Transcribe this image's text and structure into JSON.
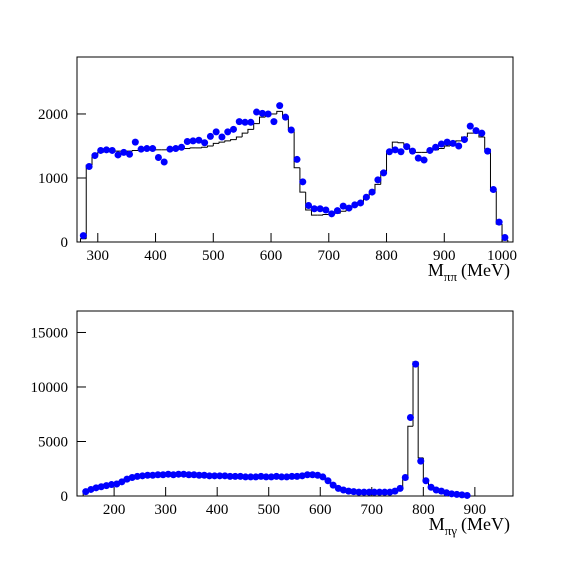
{
  "chart_data": [
    {
      "type": "scatter",
      "xlabel": {
        "symbol": "M",
        "subscript": "ππ",
        "unit": "(MeV)"
      },
      "xlim": [
        264,
        1019
      ],
      "ylim": [
        0,
        2890
      ],
      "xticks": [
        300,
        400,
        500,
        600,
        700,
        800,
        900,
        1000
      ],
      "yticks": [
        0,
        1000,
        2000
      ],
      "x": [
        275,
        285,
        295,
        305,
        315,
        325,
        335,
        345,
        355,
        365,
        375,
        385,
        395,
        405,
        415,
        425,
        435,
        445,
        455,
        465,
        475,
        485,
        495,
        505,
        515,
        525,
        535,
        545,
        555,
        565,
        575,
        585,
        595,
        605,
        615,
        625,
        635,
        645,
        655,
        665,
        675,
        685,
        695,
        705,
        715,
        725,
        735,
        745,
        755,
        765,
        775,
        785,
        795,
        805,
        815,
        825,
        835,
        845,
        855,
        865,
        875,
        885,
        895,
        905,
        915,
        925,
        935,
        945,
        955,
        965,
        975,
        985,
        995,
        1005
      ],
      "series": [
        {
          "color": "#0000ff",
          "values": [
            100,
            1180,
            1350,
            1430,
            1440,
            1430,
            1360,
            1400,
            1370,
            1560,
            1450,
            1460,
            1460,
            1320,
            1250,
            1450,
            1460,
            1480,
            1570,
            1580,
            1590,
            1550,
            1650,
            1720,
            1640,
            1720,
            1760,
            1880,
            1870,
            1870,
            2030,
            2010,
            2000,
            1880,
            2130,
            1950,
            1750,
            1290,
            940,
            570,
            520,
            520,
            500,
            440,
            490,
            560,
            530,
            580,
            610,
            700,
            780,
            970,
            1080,
            1410,
            1440,
            1410,
            1490,
            1420,
            1310,
            1280,
            1430,
            1480,
            1530,
            1560,
            1540,
            1500,
            1600,
            1810,
            1740,
            1700,
            1420,
            820,
            310,
            70
          ]
        }
      ],
      "histogram": {
        "color": "#000000",
        "bins": [
          270,
          280,
          290,
          300,
          310,
          320,
          330,
          340,
          350,
          360,
          370,
          380,
          390,
          400,
          410,
          420,
          430,
          440,
          450,
          460,
          470,
          480,
          490,
          500,
          510,
          520,
          530,
          540,
          550,
          560,
          570,
          580,
          590,
          600,
          610,
          620,
          630,
          640,
          650,
          660,
          670,
          680,
          690,
          700,
          710,
          720,
          730,
          740,
          750,
          760,
          770,
          780,
          790,
          800,
          810,
          820,
          830,
          840,
          850,
          860,
          870,
          880,
          890,
          900,
          910,
          920,
          930,
          940,
          950,
          960,
          970,
          980,
          990,
          1000,
          1010
        ],
        "counts": [
          50,
          1200,
          1360,
          1400,
          1410,
          1420,
          1420,
          1420,
          1420,
          1430,
          1430,
          1440,
          1440,
          1440,
          1440,
          1450,
          1450,
          1460,
          1460,
          1470,
          1470,
          1480,
          1500,
          1540,
          1560,
          1580,
          1600,
          1640,
          1700,
          1760,
          1850,
          1950,
          2000,
          2000,
          2040,
          1960,
          1760,
          1160,
          780,
          500,
          420,
          420,
          430,
          430,
          450,
          480,
          520,
          560,
          620,
          680,
          760,
          900,
          1100,
          1400,
          1560,
          1550,
          1480,
          1420,
          1400,
          1400,
          1420,
          1440,
          1460,
          1500,
          1540,
          1580,
          1640,
          1700,
          1700,
          1640,
          1450,
          800,
          280,
          30
        ]
      }
    },
    {
      "type": "scatter",
      "xlabel": {
        "symbol": "M",
        "subscript": "πγ",
        "unit": "(MeV)"
      },
      "xlim": [
        128,
        974
      ],
      "ylim": [
        0,
        16970
      ],
      "xticks": [
        200,
        300,
        400,
        500,
        600,
        700,
        800,
        900
      ],
      "yticks": [
        0,
        5000,
        10000,
        15000
      ],
      "x": [
        145,
        155,
        165,
        175,
        185,
        195,
        205,
        215,
        225,
        235,
        245,
        255,
        265,
        275,
        285,
        295,
        305,
        315,
        325,
        335,
        345,
        355,
        365,
        375,
        385,
        395,
        405,
        415,
        425,
        435,
        445,
        455,
        465,
        475,
        485,
        495,
        505,
        515,
        525,
        535,
        545,
        555,
        565,
        575,
        585,
        595,
        605,
        615,
        625,
        635,
        645,
        655,
        665,
        675,
        685,
        695,
        705,
        715,
        725,
        735,
        745,
        755,
        765,
        775,
        785,
        795,
        805,
        815,
        825,
        835,
        845,
        855,
        865,
        875,
        885
      ],
      "series": [
        {
          "color": "#0000ff",
          "values": [
            400,
            600,
            750,
            850,
            950,
            1050,
            1100,
            1300,
            1550,
            1700,
            1800,
            1850,
            1900,
            1900,
            1950,
            1950,
            2000,
            1950,
            2000,
            2000,
            1950,
            1950,
            1900,
            1900,
            1850,
            1850,
            1850,
            1850,
            1800,
            1800,
            1800,
            1750,
            1750,
            1750,
            1800,
            1750,
            1750,
            1800,
            1750,
            1750,
            1800,
            1800,
            1850,
            1950,
            1950,
            1900,
            1750,
            1400,
            1000,
            700,
            550,
            450,
            400,
            350,
            350,
            350,
            350,
            350,
            350,
            350,
            450,
            700,
            1700,
            7200,
            12100,
            3200,
            1400,
            800,
            550,
            450,
            300,
            200,
            150,
            100,
            50
          ]
        }
      ],
      "histogram": {
        "color": "#000000",
        "bins": [
          140,
          150,
          160,
          170,
          180,
          190,
          200,
          210,
          220,
          230,
          240,
          250,
          260,
          270,
          280,
          290,
          300,
          310,
          320,
          330,
          340,
          350,
          360,
          370,
          380,
          390,
          400,
          410,
          420,
          430,
          440,
          450,
          460,
          470,
          480,
          490,
          500,
          510,
          520,
          530,
          540,
          550,
          560,
          570,
          580,
          590,
          600,
          610,
          620,
          630,
          640,
          650,
          660,
          670,
          680,
          690,
          700,
          710,
          720,
          730,
          740,
          750,
          760,
          770,
          780,
          790,
          800,
          810,
          820,
          830,
          840,
          850,
          860,
          870,
          880,
          890
        ],
        "counts": [
          300,
          550,
          700,
          800,
          900,
          1000,
          1100,
          1250,
          1450,
          1600,
          1700,
          1800,
          1850,
          1900,
          1900,
          1950,
          1950,
          1950,
          1950,
          1950,
          1950,
          1900,
          1900,
          1900,
          1850,
          1850,
          1850,
          1800,
          1800,
          1800,
          1800,
          1750,
          1750,
          1750,
          1750,
          1750,
          1750,
          1750,
          1750,
          1750,
          1750,
          1800,
          1850,
          1900,
          1900,
          1850,
          1700,
          1400,
          1050,
          750,
          550,
          450,
          400,
          350,
          350,
          350,
          350,
          350,
          350,
          350,
          450,
          700,
          1500,
          6400,
          12300,
          3500,
          1300,
          750,
          500,
          400,
          300,
          200,
          150,
          100,
          50
        ]
      }
    }
  ]
}
